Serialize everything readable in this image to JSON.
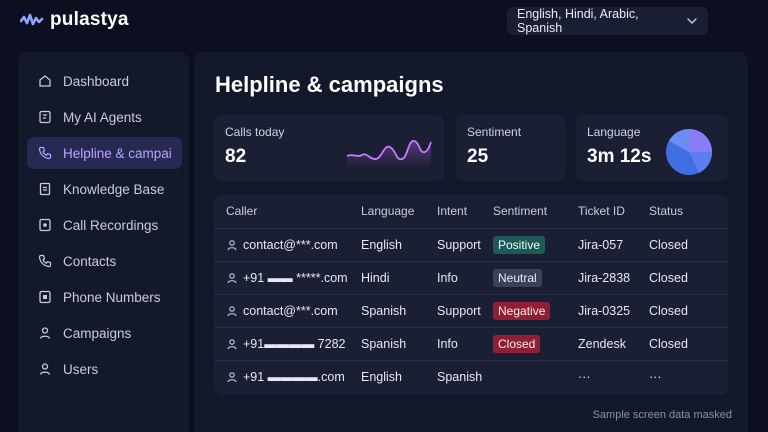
{
  "brand": {
    "name": "pulastya",
    "accent": "#9b7bff"
  },
  "language_select": {
    "value": "English, Hindi, Arabic, Spanish",
    "icon": "chevron-down-icon"
  },
  "sidebar": {
    "items": [
      {
        "label": "Dashboard",
        "icon": "home-icon",
        "active": false
      },
      {
        "label": "My AI Agents",
        "icon": "agent-icon",
        "active": false
      },
      {
        "label": "Helpline & campai",
        "icon": "phone-icon",
        "active": true
      },
      {
        "label": "Knowledge Base",
        "icon": "book-icon",
        "active": false
      },
      {
        "label": "Call Recordings",
        "icon": "recording-icon",
        "active": false
      },
      {
        "label": "Contacts",
        "icon": "contacts-phone-icon",
        "active": false
      },
      {
        "label": "Phone Numbers",
        "icon": "dialpad-icon",
        "active": false
      },
      {
        "label": "Campaigns",
        "icon": "campaign-person-icon",
        "active": false
      },
      {
        "label": "Users",
        "icon": "user-icon",
        "active": false
      }
    ]
  },
  "page": {
    "title": "Helpline & campaigns"
  },
  "cards": {
    "calls": {
      "label": "Calls today",
      "value": "82"
    },
    "sentiment": {
      "label": "Sentiment",
      "value": "25"
    },
    "language": {
      "label": "Language",
      "value": "3m 12s"
    }
  },
  "table": {
    "headers": [
      "Caller",
      "Language",
      "Intent",
      "Sentiment",
      "Ticket ID",
      "Status"
    ],
    "rows": [
      {
        "caller": "contact@***.com",
        "language": "English",
        "intent": "Support",
        "sentiment": "Positive",
        "ticket": "Jira-057",
        "status": "Closed"
      },
      {
        "caller": "+91 ▬▬ *****.com",
        "language": "Hindi",
        "intent": "Info",
        "sentiment": "Neutral",
        "ticket": "Jira-2838",
        "status": "Closed"
      },
      {
        "caller": "contact@***.com",
        "language": "Spanish",
        "intent": "Support",
        "sentiment": "Negative",
        "ticket": "Jira-0325",
        "status": "Closed"
      },
      {
        "caller": "+91▬▬▬▬ 7282",
        "language": "Spanish",
        "intent": "Info",
        "sentiment": "Closed",
        "ticket": "Zendesk",
        "status": "Closed"
      },
      {
        "caller": "+91 ▬▬▬▬.com",
        "language": "English",
        "intent": "Spanish",
        "sentiment": "",
        "ticket": "···",
        "status": "···"
      }
    ]
  },
  "footnote": "Sample screen data masked"
}
